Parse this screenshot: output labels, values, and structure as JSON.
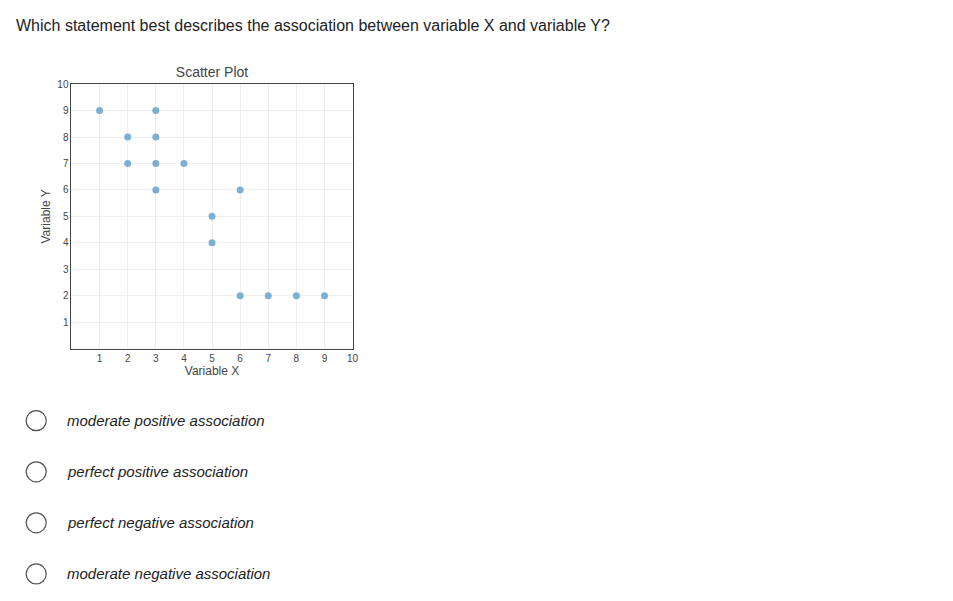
{
  "chart_data": {
    "type": "scatter",
    "title": "Scatter Plot",
    "xlabel": "Variable X",
    "ylabel": "Variable Y",
    "x": [
      1,
      2,
      2,
      3,
      3,
      3,
      3,
      4,
      5,
      5,
      6,
      6,
      7,
      8,
      9
    ],
    "values": [
      9,
      8,
      7,
      9,
      8,
      7,
      6,
      7,
      5,
      4,
      6,
      2,
      2,
      2,
      2
    ],
    "color": "#7bafd4",
    "xlim": [
      0,
      10
    ],
    "ylim": [
      0,
      10
    ],
    "xticks": [
      1,
      2,
      3,
      4,
      5,
      6,
      7,
      8,
      9,
      10
    ],
    "yticks": [
      1,
      2,
      3,
      4,
      5,
      6,
      7,
      8,
      9,
      10
    ],
    "grid": true,
    "annotations": [
      "Which statement best describes the association between variable X and variable Y?",
      "moderate positive association",
      "perfect positive association",
      "perfect negative association",
      "moderate negative association"
    ]
  }
}
